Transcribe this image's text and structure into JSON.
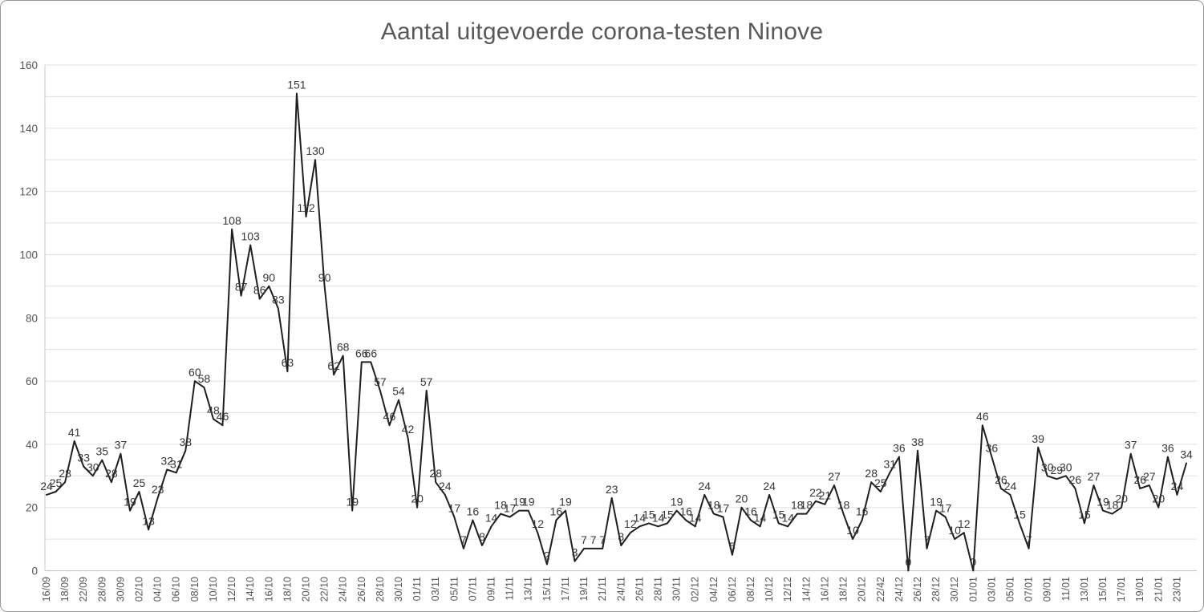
{
  "chart_data": {
    "type": "line",
    "title": "Aantal uitgevoerde corona-testen Ninove",
    "legend_position": "none",
    "grid": true,
    "grid_interval": 10,
    "ylim": [
      0,
      160
    ],
    "y_ticks": [
      0,
      20,
      40,
      60,
      80,
      100,
      120,
      140,
      160
    ],
    "x_tick_every": 2,
    "x_tick_labels": [
      "16/09",
      "18/09",
      "22/09",
      "28/09",
      "30/09",
      "02/10",
      "04/10",
      "06/10",
      "08/10",
      "10/10",
      "12/10",
      "14/10",
      "16/10",
      "18/10",
      "20/10",
      "22/10",
      "24/10",
      "26/10",
      "28/10",
      "30/10",
      "01/11",
      "03/11",
      "05/11",
      "07/11",
      "09/11",
      "11/11",
      "13/11",
      "15/11",
      "17/11",
      "19/11",
      "21/11",
      "24/11",
      "26/11",
      "28/11",
      "30/11",
      "02/12",
      "04/12",
      "06/12",
      "08/12",
      "10/12",
      "12/12",
      "14/12",
      "16/12",
      "18/12",
      "20/12",
      "22/42",
      "24/12",
      "26/12",
      "28/12",
      "30/12",
      "01/01",
      "03/01",
      "05/01",
      "07/01",
      "09/01",
      "11/01",
      "13/01",
      "15/01",
      "17/01",
      "19/01",
      "21/01",
      "23/01"
    ],
    "values": [
      24,
      25,
      28,
      41,
      33,
      30,
      35,
      28,
      37,
      19,
      25,
      13,
      23,
      32,
      31,
      38,
      60,
      58,
      48,
      46,
      108,
      87,
      103,
      86,
      90,
      83,
      63,
      151,
      112,
      130,
      90,
      62,
      68,
      19,
      66,
      66,
      57,
      46,
      54,
      42,
      20,
      57,
      28,
      24,
      17,
      7,
      16,
      8,
      14,
      18,
      17,
      19,
      19,
      12,
      2,
      16,
      19,
      3,
      7,
      7,
      7,
      23,
      8,
      12,
      14,
      15,
      14,
      15,
      19,
      16,
      14,
      24,
      18,
      17,
      5,
      20,
      16,
      14,
      24,
      15,
      14,
      18,
      18,
      22,
      21,
      27,
      18,
      10,
      16,
      28,
      25,
      31,
      36,
      0,
      38,
      7,
      19,
      17,
      10,
      12,
      0,
      46,
      36,
      26,
      24,
      15,
      7,
      39,
      30,
      29,
      30,
      26,
      15,
      27,
      19,
      18,
      20,
      37,
      26,
      27,
      20,
      36,
      24,
      34
    ],
    "data_labels": true,
    "colors": {
      "line": "#1f1f1f",
      "data_label": "#363636",
      "axis_text": "#555555",
      "gridline": "#e0e0e0",
      "axis_line": "#c9c9c9",
      "title": "#595959"
    }
  }
}
